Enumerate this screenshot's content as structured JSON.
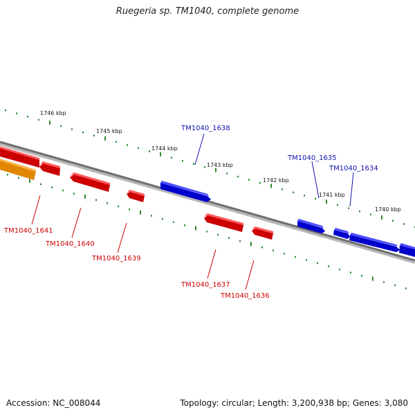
{
  "title": "Ruegeria sp. TM1040, complete genome",
  "footer": {
    "accession": "Accession: NC_008044",
    "topology": "Topology: circular; Length: 3,200,938 bp; Genes: 3,080"
  },
  "colors": {
    "forward_gene": "#0000ee",
    "forward_label": "#1010b0",
    "reverse_gene": "#ee0000",
    "reverse_label": "#cc0000",
    "other_gene": "#ff9a00",
    "ticks": "#2e8b2e",
    "backbone": "#7a7a7a"
  },
  "scale": {
    "tick_labels": [
      "1746 kbp",
      "1745 kbp",
      "1744 kbp",
      "1743 kbp",
      "1742 kbp",
      "1741 kbp",
      "1740 kbp"
    ]
  },
  "genes": {
    "forward": [
      {
        "label": "TM1040_1638"
      },
      {
        "label": "TM1040_1635"
      },
      {
        "label": "TM1040_1634"
      }
    ],
    "reverse": [
      {
        "label": "TM1040_1641"
      },
      {
        "label": "TM1040_1640"
      },
      {
        "label": "TM1040_1639"
      },
      {
        "label": "TM1040_1637"
      },
      {
        "label": "TM1040_1636"
      }
    ]
  }
}
